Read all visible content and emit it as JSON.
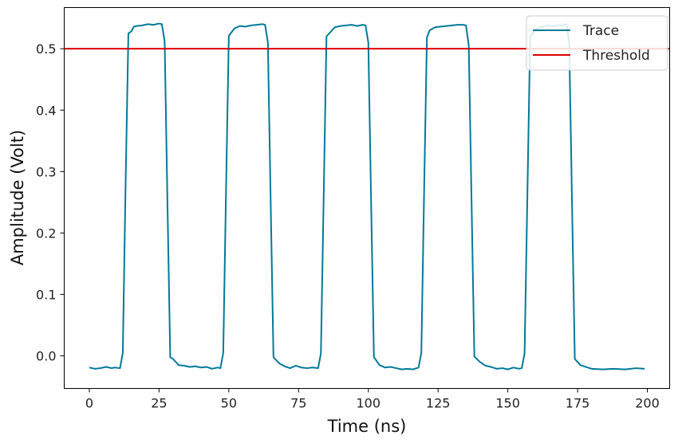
{
  "chart_data": {
    "type": "line",
    "xlabel": "Time (ns)",
    "ylabel": "Amplitude (Volt)",
    "xlim": [
      -9,
      208
    ],
    "ylim": [
      -0.053,
      0.567
    ],
    "xticks": [
      0,
      25,
      50,
      75,
      100,
      125,
      150,
      175,
      200
    ],
    "yticks": [
      0.0,
      0.1,
      0.2,
      0.3,
      0.4,
      0.5
    ],
    "ytick_labels": [
      "0.0",
      "0.1",
      "0.2",
      "0.3",
      "0.4",
      "0.5"
    ],
    "legend": {
      "placement": "top-right",
      "entries": [
        "Trace",
        "Threshold"
      ]
    },
    "grid": false,
    "colors": {
      "trace": "#007A99",
      "threshold": "#E00000"
    },
    "series": [
      {
        "name": "Trace",
        "x": [
          0,
          2,
          4,
          6,
          8,
          9,
          11,
          12,
          13,
          14,
          15,
          16,
          17,
          19,
          21,
          23,
          25,
          26,
          27,
          28,
          29,
          30,
          32,
          34,
          36,
          38,
          40,
          42,
          44,
          46,
          47,
          48,
          49,
          50,
          52,
          54,
          56,
          58,
          60,
          62,
          63,
          64,
          65,
          66,
          68,
          70,
          72,
          74,
          76,
          78,
          80,
          82,
          83,
          84,
          85,
          86,
          88,
          90,
          92,
          94,
          96,
          98,
          99,
          100,
          101,
          102,
          104,
          106,
          108,
          110,
          112,
          114,
          116,
          118,
          119,
          120,
          121,
          122,
          124,
          126,
          128,
          130,
          132,
          134,
          135,
          136,
          137,
          138,
          140,
          142,
          144,
          146,
          148,
          150,
          152,
          154,
          155,
          156,
          157,
          158,
          160,
          162,
          164,
          166,
          168,
          170,
          171,
          172,
          173,
          174,
          176,
          178,
          180,
          184,
          188,
          192,
          196,
          199
        ],
        "y": [
          -0.019,
          -0.021,
          -0.02,
          -0.018,
          -0.02,
          -0.019,
          -0.02,
          0.005,
          0.28,
          0.525,
          0.528,
          0.536,
          0.537,
          0.538,
          0.54,
          0.539,
          0.541,
          0.54,
          0.512,
          0.25,
          -0.002,
          -0.005,
          -0.015,
          -0.016,
          -0.018,
          -0.017,
          -0.019,
          -0.018,
          -0.021,
          -0.019,
          -0.02,
          0.005,
          0.27,
          0.521,
          0.533,
          0.537,
          0.536,
          0.538,
          0.539,
          0.54,
          0.539,
          0.51,
          0.25,
          -0.002,
          -0.012,
          -0.017,
          -0.02,
          -0.016,
          -0.019,
          -0.02,
          -0.019,
          -0.02,
          0.004,
          0.26,
          0.52,
          0.525,
          0.535,
          0.537,
          0.538,
          0.539,
          0.537,
          0.539,
          0.538,
          0.51,
          0.25,
          -0.002,
          -0.015,
          -0.019,
          -0.018,
          -0.02,
          -0.022,
          -0.021,
          -0.022,
          -0.019,
          0.005,
          0.27,
          0.518,
          0.53,
          0.535,
          0.536,
          0.537,
          0.538,
          0.539,
          0.539,
          0.538,
          0.505,
          0.25,
          -0.001,
          -0.01,
          -0.016,
          -0.018,
          -0.021,
          -0.02,
          -0.022,
          -0.019,
          -0.021,
          -0.02,
          0.004,
          0.26,
          0.52,
          0.532,
          0.535,
          0.538,
          0.537,
          0.538,
          0.538,
          0.54,
          0.51,
          0.25,
          -0.005,
          -0.015,
          -0.018,
          -0.021,
          -0.022,
          -0.021,
          -0.022,
          -0.02,
          -0.021
        ]
      },
      {
        "name": "Threshold",
        "y": 0.5
      }
    ]
  }
}
